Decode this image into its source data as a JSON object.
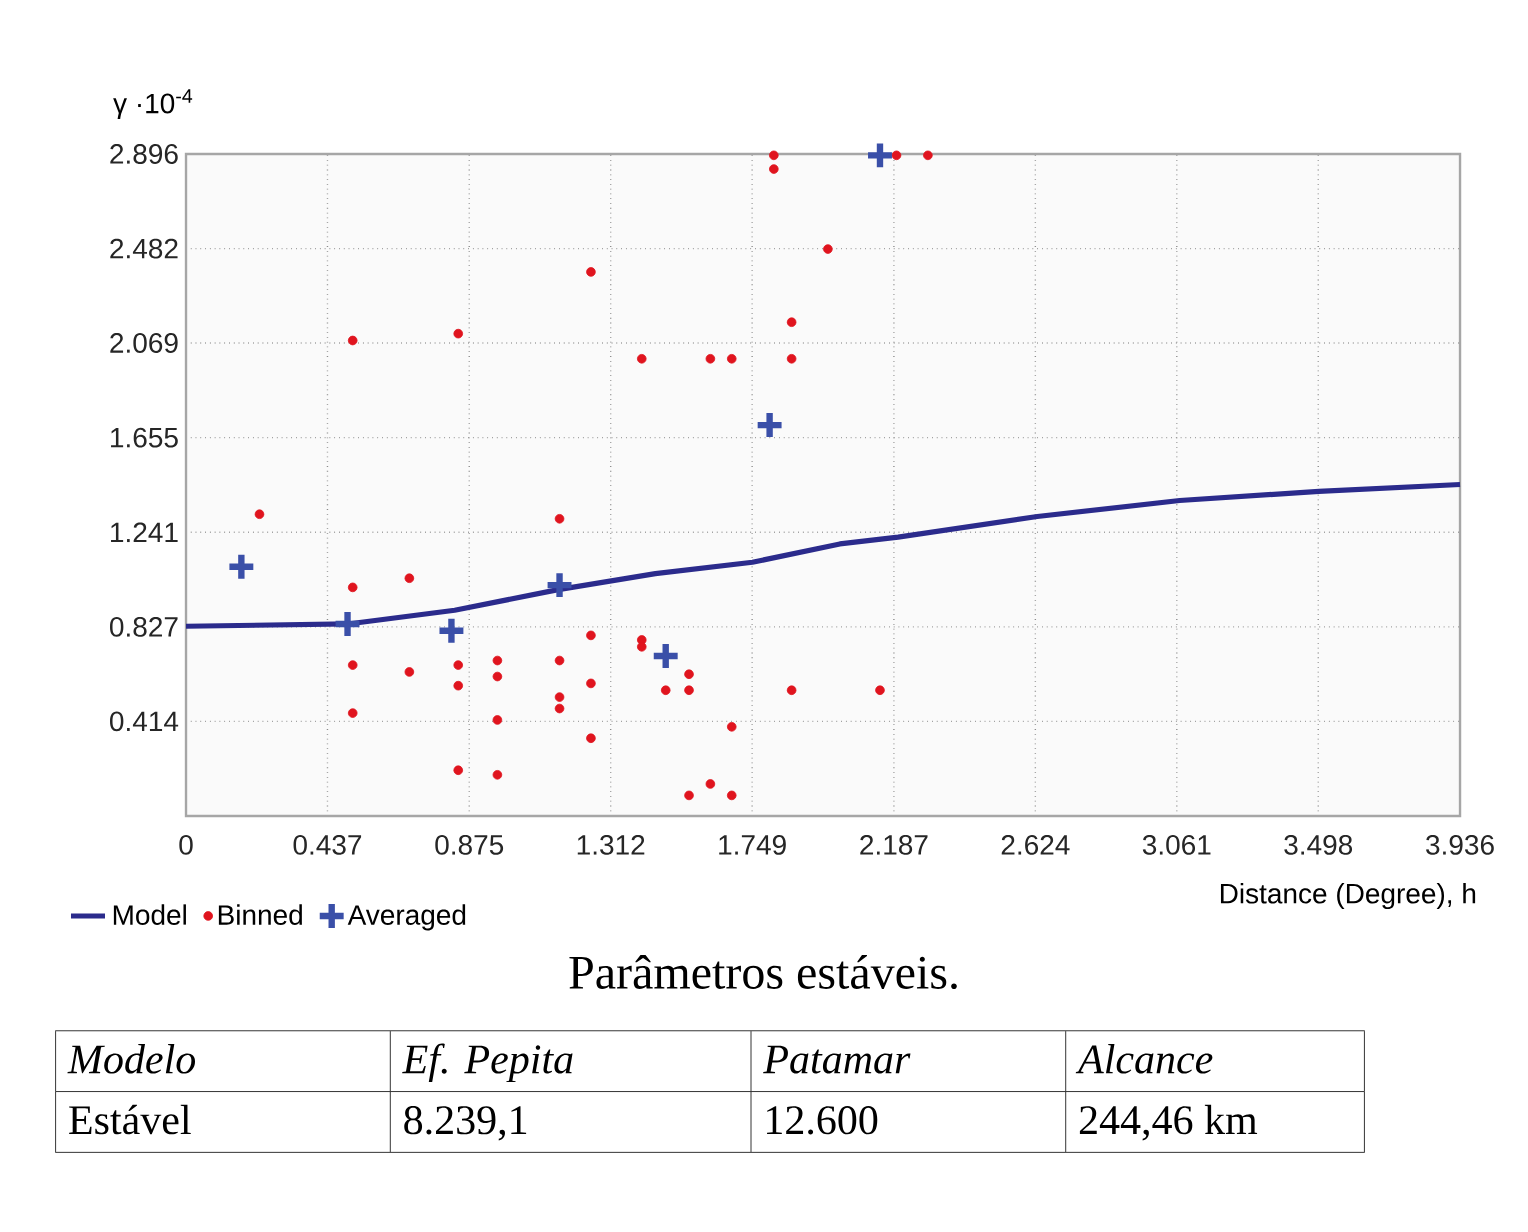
{
  "chart_data": {
    "type": "scatter",
    "ylabel": "γ ·10$^{-4}$",
    "xlabel": "Distance (Degree), h",
    "xlim": [
      0,
      3.936
    ],
    "ylim": [
      0,
      2.896
    ],
    "xticks": [
      0,
      0.437,
      0.875,
      1.312,
      1.749,
      2.187,
      2.624,
      3.061,
      3.498,
      3.936
    ],
    "yticks": [
      0.414,
      0.827,
      1.241,
      1.655,
      2.069,
      2.482,
      2.896
    ],
    "grid": true,
    "legend": "bottom left",
    "series": [
      {
        "name": "Model",
        "type": "line",
        "color": "#2b2b8c",
        "marker": "none",
        "line_style": "solid",
        "x": [
          0,
          0.5,
          0.83,
          1.15,
          1.45,
          1.75,
          2.02,
          2.2,
          2.63,
          3.07,
          3.5,
          3.936
        ],
        "values": [
          0.83,
          0.84,
          0.9,
          0.99,
          1.06,
          1.11,
          1.19,
          1.22,
          1.31,
          1.38,
          1.42,
          1.45
        ]
      },
      {
        "name": "Binned",
        "color": "#e0141e",
        "marker": "circle",
        "x": [
          0.227,
          0.515,
          0.515,
          0.515,
          0.515,
          0.69,
          0.69,
          0.841,
          0.841,
          0.841,
          0.841,
          0.962,
          0.962,
          0.962,
          0.962,
          1.154,
          1.154,
          1.154,
          1.154,
          1.251,
          1.251,
          1.251,
          1.251,
          1.408,
          1.408,
          1.408,
          1.482,
          1.554,
          1.554,
          1.554,
          1.62,
          1.62,
          1.686,
          1.686,
          1.686,
          1.816,
          1.816,
          1.871,
          1.871,
          1.871,
          1.983,
          2.195,
          2.292,
          2.144
        ],
        "values": [
          1.32,
          2.08,
          1.0,
          0.66,
          0.45,
          1.04,
          0.63,
          2.11,
          0.66,
          0.57,
          0.2,
          0.68,
          0.61,
          0.42,
          0.18,
          1.3,
          0.68,
          0.52,
          0.47,
          2.38,
          0.79,
          0.58,
          0.34,
          2.0,
          0.77,
          0.74,
          0.55,
          0.62,
          0.55,
          0.09,
          2.0,
          0.14,
          2.0,
          0.39,
          0.09,
          2.89,
          2.83,
          2.16,
          2.0,
          0.55,
          2.48,
          2.89,
          2.89,
          0.55
        ]
      },
      {
        "name": "Averaged",
        "color": "#3a4fa8",
        "marker": "cross",
        "x": [
          0.171,
          0.499,
          0.82,
          1.154,
          1.482,
          1.803,
          2.144
        ],
        "values": [
          1.09,
          0.84,
          0.81,
          1.01,
          0.7,
          1.71,
          2.89
        ]
      }
    ],
    "annotations": [
      "Parâmetros estáveis.",
      "Modelo",
      "Ef. Pepita",
      "Patamar",
      "Alcance",
      "Estável",
      "8.239,1",
      "12.600",
      "244,46 km"
    ]
  }
}
